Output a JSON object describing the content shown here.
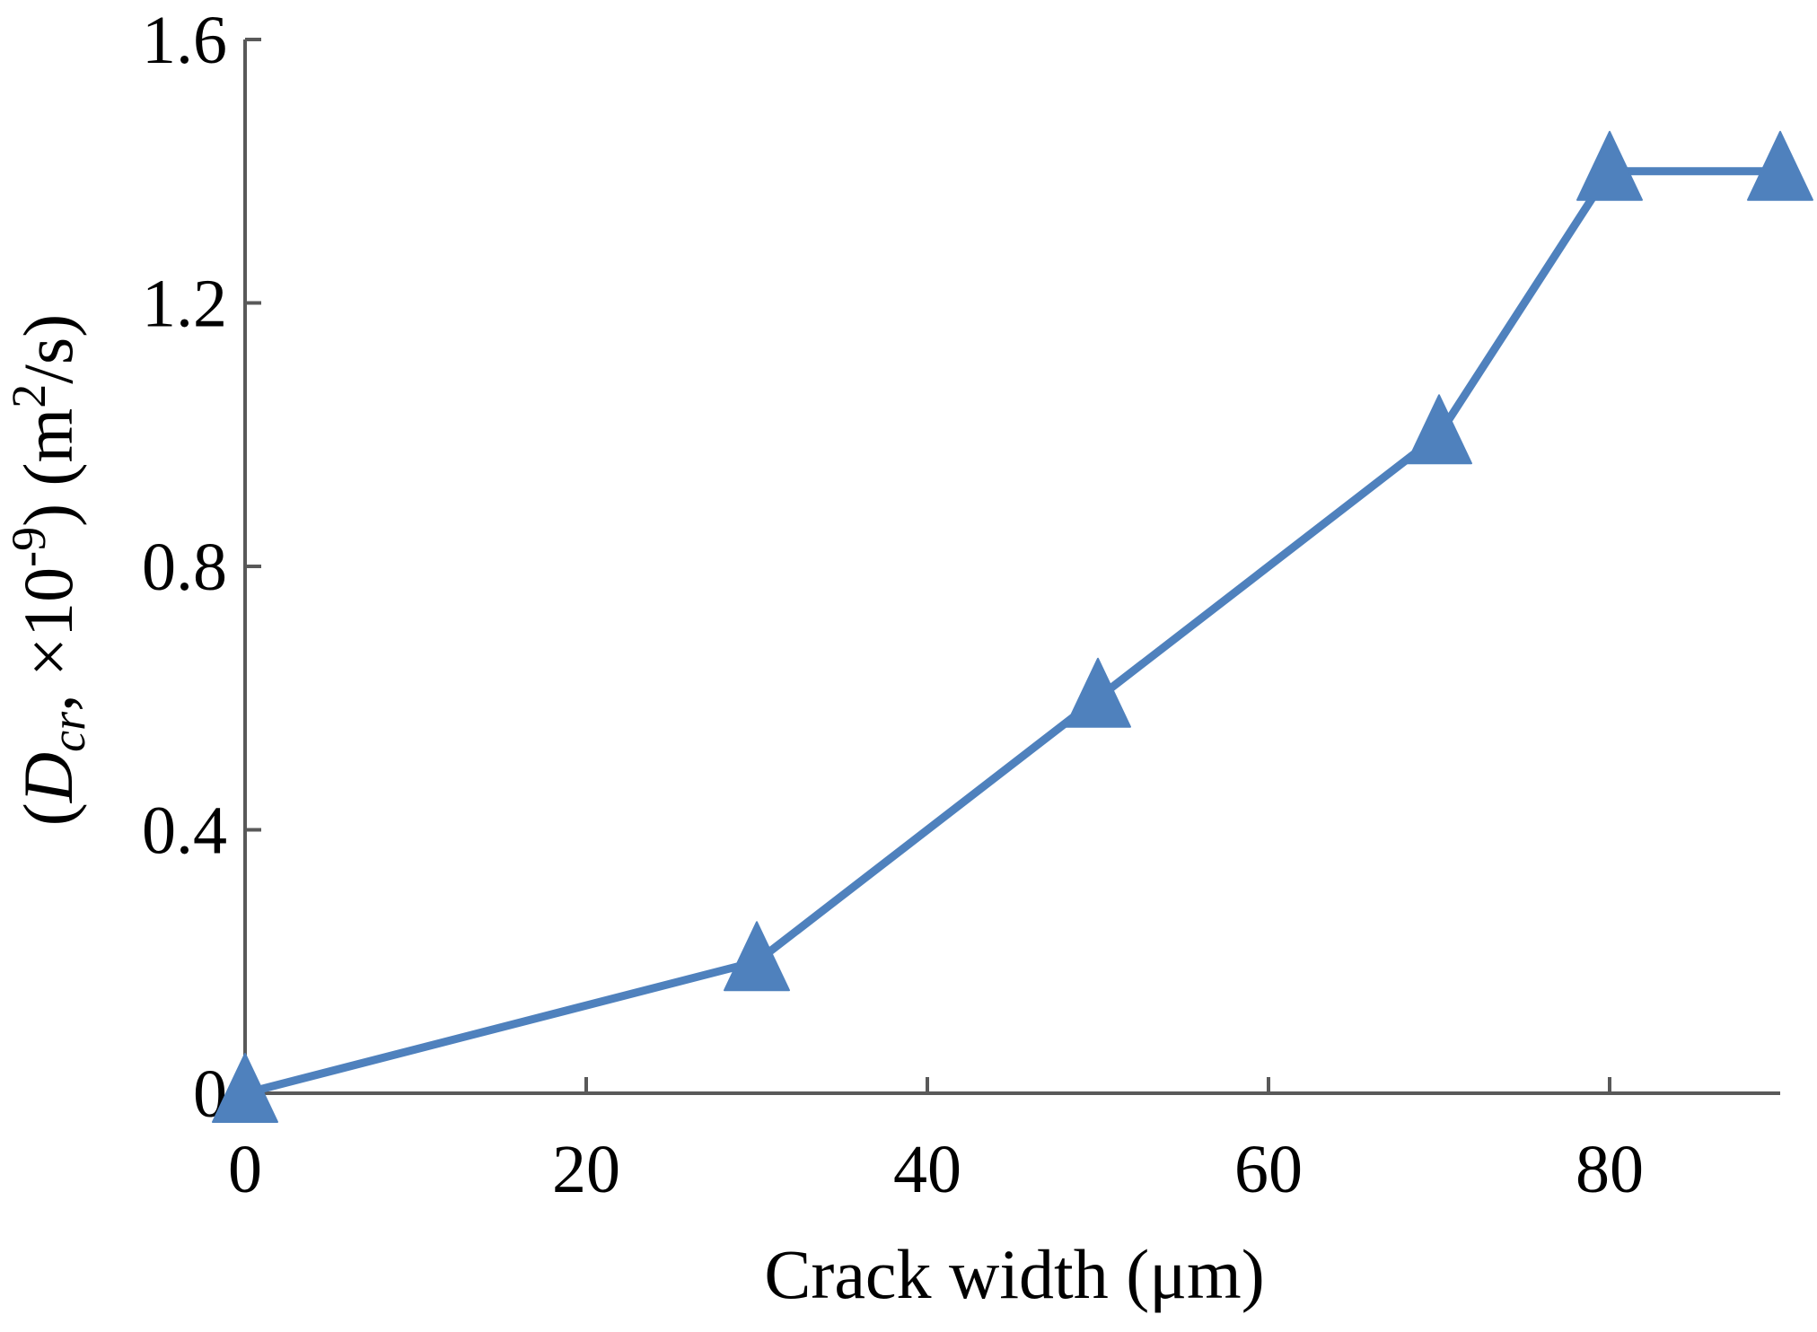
{
  "chart_data": {
    "type": "line",
    "title": "",
    "xlabel": "Crack width (μm)",
    "ylabel": {
      "open": "(",
      "symbol": "D",
      "subscript": "cr",
      "mid": ", ×10",
      "exponent": "-9",
      "close_unit": ") (m",
      "unit_exp": "2",
      "unit_tail": "/s)"
    },
    "xlim": [
      0,
      90
    ],
    "ylim": [
      0,
      1.6
    ],
    "x_ticks": [
      0,
      20,
      40,
      60,
      80
    ],
    "x_tick_labels": [
      "0",
      "20",
      "40",
      "60",
      "80"
    ],
    "y_ticks": [
      0,
      0.4,
      0.8,
      1.2,
      1.6
    ],
    "y_tick_labels": [
      "0",
      "0.4",
      "0.8",
      "1.2",
      "1.6"
    ],
    "grid": false,
    "legend": "none",
    "series": [
      {
        "x": [
          0,
          30,
          50,
          70,
          80,
          90
        ],
        "y": [
          0,
          0.2,
          0.6,
          1.0,
          1.4,
          1.4
        ],
        "marker": "triangle",
        "color": "#4f81bd"
      }
    ],
    "axis_color": "#595959"
  }
}
